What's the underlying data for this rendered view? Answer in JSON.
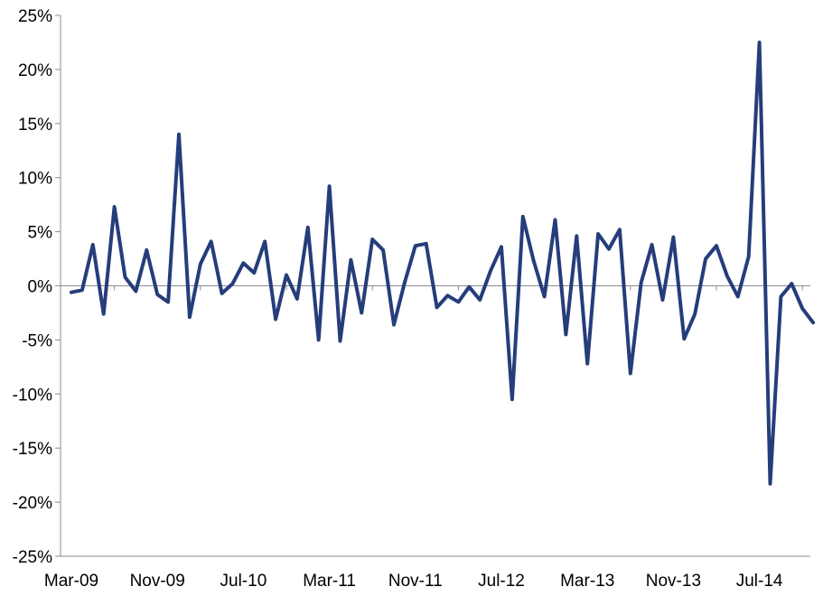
{
  "chart_data": {
    "type": "line",
    "title": "",
    "xlabel": "",
    "ylabel": "",
    "ylim": [
      -25,
      25
    ],
    "y_ticks": [
      25,
      20,
      15,
      10,
      5,
      0,
      -5,
      -10,
      -15,
      -20,
      -25
    ],
    "y_tick_labels": [
      "25%",
      "20%",
      "15%",
      "10%",
      "5%",
      "0%",
      "-5%",
      "-10%",
      "-15%",
      "-20%",
      "-25%"
    ],
    "x_tick_labels": [
      "Mar-09",
      "Nov-09",
      "Jul-10",
      "Mar-11",
      "Nov-11",
      "Jul-12",
      "Mar-13",
      "Nov-13",
      "Jul-14"
    ],
    "x_tick_label_every_n_months": 8,
    "grid": false,
    "line_color": "#253D7A",
    "series": [
      {
        "x": [
          "Mar-09",
          "Apr-09",
          "May-09",
          "Jun-09",
          "Jul-09",
          "Aug-09",
          "Sep-09",
          "Oct-09",
          "Nov-09",
          "Dec-09",
          "Jan-10",
          "Feb-10",
          "Mar-10",
          "Apr-10",
          "May-10",
          "Jun-10",
          "Jul-10",
          "Aug-10",
          "Sep-10",
          "Oct-10",
          "Nov-10",
          "Dec-10",
          "Jan-11",
          "Feb-11",
          "Mar-11",
          "Apr-11",
          "May-11",
          "Jun-11",
          "Jul-11",
          "Aug-11",
          "Sep-11",
          "Oct-11",
          "Nov-11",
          "Dec-11",
          "Jan-12",
          "Feb-12",
          "Mar-12",
          "Apr-12",
          "May-12",
          "Jun-12",
          "Jul-12",
          "Aug-12",
          "Sep-12",
          "Oct-12",
          "Nov-12",
          "Dec-12",
          "Jan-13",
          "Feb-13",
          "Mar-13",
          "Apr-13",
          "May-13",
          "Jun-13",
          "Jul-13",
          "Aug-13",
          "Sep-13",
          "Oct-13",
          "Nov-13",
          "Dec-13",
          "Jan-14",
          "Feb-14",
          "Mar-14",
          "Apr-14",
          "May-14",
          "Jun-14",
          "Jul-14",
          "Aug-14",
          "Sep-14",
          "Oct-14",
          "Nov-14",
          "Dec-14"
        ],
        "values": [
          -0.6,
          -0.4,
          3.8,
          -2.6,
          7.3,
          0.8,
          -0.5,
          3.3,
          -0.8,
          -1.5,
          14.0,
          -2.9,
          2.0,
          4.1,
          -0.7,
          0.2,
          2.1,
          1.2,
          4.1,
          -3.1,
          1.0,
          -1.2,
          5.4,
          -5.0,
          9.2,
          -5.1,
          2.4,
          -2.5,
          4.3,
          3.3,
          -3.6,
          0.3,
          3.7,
          3.9,
          -2.0,
          -0.9,
          -1.5,
          -0.1,
          -1.3,
          1.4,
          3.6,
          -10.5,
          6.4,
          2.3,
          -1.0,
          6.1,
          -4.5,
          4.6,
          -7.2,
          4.8,
          3.4,
          5.2,
          -8.1,
          0.3,
          3.8,
          -1.3,
          4.5,
          -4.9,
          -2.6,
          2.5,
          3.7,
          0.9,
          -1.0,
          2.7,
          22.5,
          -18.3,
          -1.0,
          0.2,
          -2.1,
          -3.4
        ]
      }
    ]
  }
}
